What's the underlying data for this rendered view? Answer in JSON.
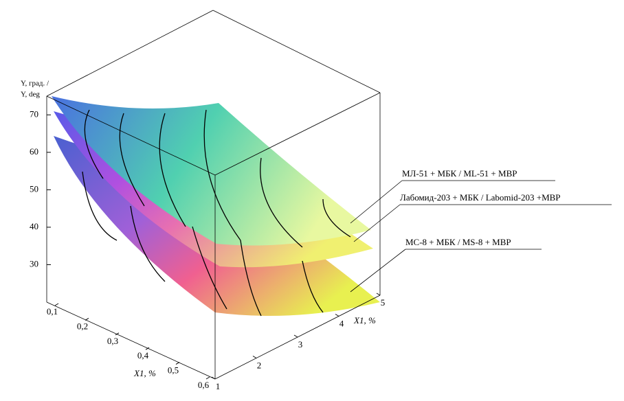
{
  "chart_data": {
    "type": "surface3d",
    "z_label": [
      "Y, град. /",
      "Y, deg"
    ],
    "x1_label": "X1, %",
    "x2_label": "X1, %",
    "zlim": [
      20,
      75
    ],
    "zticks": [
      30,
      40,
      50,
      60,
      70
    ],
    "x1lim": [
      0.1,
      0.6
    ],
    "x1ticks": [
      {
        "value": 0.1,
        "label": "0,1"
      },
      {
        "value": 0.2,
        "label": "0,2"
      },
      {
        "value": 0.3,
        "label": "0,3"
      },
      {
        "value": 0.4,
        "label": "0,4"
      },
      {
        "value": 0.5,
        "label": "0,5"
      },
      {
        "value": 0.6,
        "label": "0,6"
      }
    ],
    "x2lim": [
      1,
      5
    ],
    "x2ticks": [
      1,
      2,
      3,
      4,
      5
    ],
    "series": [
      {
        "name": "МЛ-51 + МБК  / ML-51 + MBP"
      },
      {
        "name": "Лабомид-203 + МБК / Labomid-203 +MBP"
      },
      {
        "name": "МС-8 + МБК / MS-8 + MBP"
      }
    ]
  }
}
